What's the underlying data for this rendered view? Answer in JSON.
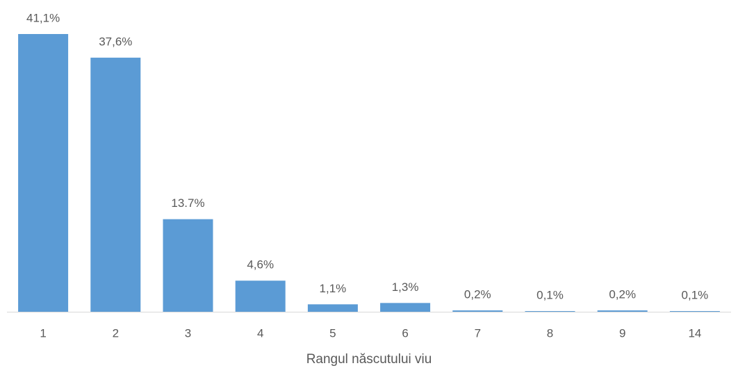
{
  "chart_data": {
    "type": "bar",
    "categories": [
      "1",
      "2",
      "3",
      "4",
      "5",
      "6",
      "7",
      "8",
      "9",
      "14"
    ],
    "values": [
      41.1,
      37.6,
      13.7,
      4.6,
      1.1,
      1.3,
      0.2,
      0.1,
      0.2,
      0.1
    ],
    "value_labels": [
      "41,1%",
      "37,6%",
      "13.7%",
      "4,6%",
      "1,1%",
      "1,3%",
      "0,2%",
      "0,1%",
      "0,2%",
      "0,1%"
    ],
    "color": "#5b9bd5",
    "x_label": "Rangul născutului viu"
  }
}
